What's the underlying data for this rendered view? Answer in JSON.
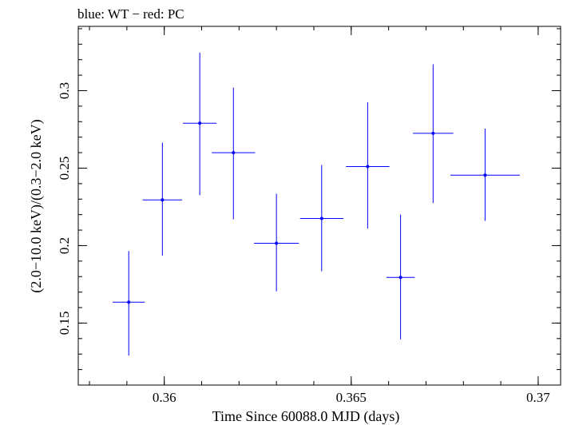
{
  "chart_data": {
    "type": "scatter",
    "title": "blue: WT − red: PC",
    "xlabel": "Time Since 60088.0 MJD (days)",
    "ylabel": "(2.0−10.0 keV)/(0.3−2.0 keV)",
    "xlim": [
      0.3577,
      0.3706
    ],
    "ylim": [
      0.11,
      0.3415
    ],
    "x_ticks": [
      {
        "value": 0.36,
        "label": "0.36"
      },
      {
        "value": 0.365,
        "label": "0.365"
      },
      {
        "value": 0.37,
        "label": "0.37"
      }
    ],
    "y_ticks": [
      {
        "value": 0.15,
        "label": "0.15"
      },
      {
        "value": 0.2,
        "label": "0.2"
      },
      {
        "value": 0.25,
        "label": "0.25"
      },
      {
        "value": 0.3,
        "label": "0.3"
      }
    ],
    "x_minor_step": 0.001,
    "y_minor_step": 0.01,
    "grid": false,
    "series": [
      {
        "name": "WT",
        "color": "#0000ff",
        "points": [
          {
            "x": 0.35905,
            "y": 0.1635,
            "xerr": 0.00043,
            "ylo": 0.129,
            "yhi": 0.1965
          },
          {
            "x": 0.35995,
            "y": 0.2295,
            "xerr": 0.00053,
            "ylo": 0.1935,
            "yhi": 0.2665
          },
          {
            "x": 0.36095,
            "y": 0.279,
            "xerr": 0.00045,
            "ylo": 0.2325,
            "yhi": 0.3245
          },
          {
            "x": 0.36185,
            "y": 0.26,
            "xerr": 0.00058,
            "ylo": 0.217,
            "yhi": 0.302
          },
          {
            "x": 0.363,
            "y": 0.2015,
            "xerr": 0.0006,
            "ylo": 0.1705,
            "yhi": 0.2335
          },
          {
            "x": 0.36421,
            "y": 0.2175,
            "xerr": 0.00058,
            "ylo": 0.1835,
            "yhi": 0.252
          },
          {
            "x": 0.36544,
            "y": 0.251,
            "xerr": 0.00058,
            "ylo": 0.211,
            "yhi": 0.2925
          },
          {
            "x": 0.36632,
            "y": 0.1795,
            "xerr": 0.00038,
            "ylo": 0.1395,
            "yhi": 0.22
          },
          {
            "x": 0.36719,
            "y": 0.2725,
            "xerr": 0.00054,
            "ylo": 0.2275,
            "yhi": 0.317
          },
          {
            "x": 0.36858,
            "y": 0.2455,
            "xerr": 0.00093,
            "ylo": 0.216,
            "yhi": 0.2755
          }
        ]
      }
    ]
  }
}
